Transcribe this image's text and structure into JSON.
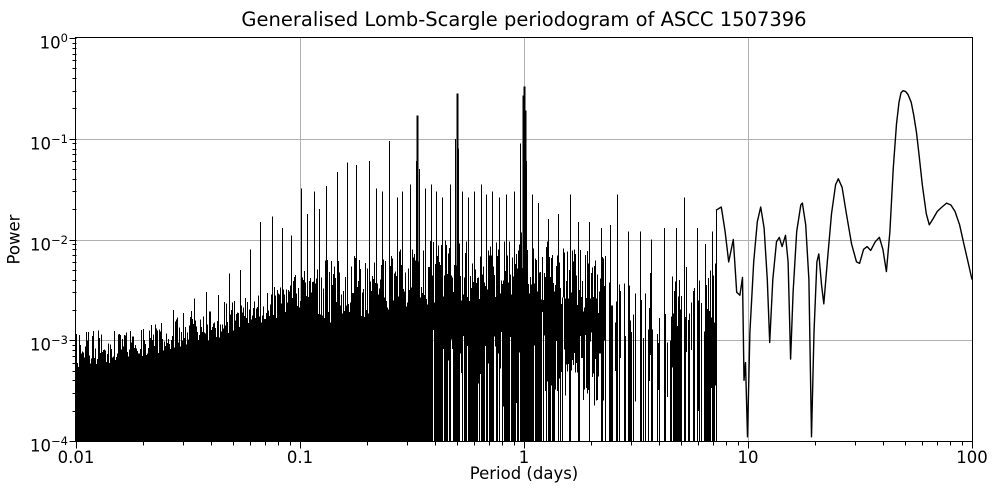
{
  "chart_data": {
    "type": "line",
    "title": "Generalised Lomb-Scargle periodogram of ASCC 1507396",
    "xlabel": "Period (days)",
    "ylabel": "Power",
    "xscale": "log",
    "yscale": "log",
    "xlim": [
      0.01,
      100
    ],
    "ylim": [
      0.0001,
      1
    ],
    "grid": true,
    "legend": "none",
    "line_color": "#000000",
    "grid_color": "#b0b0b0",
    "background_color": "#ffffff",
    "x_ticks": [
      {
        "value": 0.01,
        "label": "0.01"
      },
      {
        "value": 0.1,
        "label": "0.1"
      },
      {
        "value": 1,
        "label": "1"
      },
      {
        "value": 10,
        "label": "10"
      },
      {
        "value": 100,
        "label": "100"
      }
    ],
    "y_ticks": [
      {
        "exp": 0,
        "exp_label": "0"
      },
      {
        "exp": -1,
        "exp_label": "−1"
      },
      {
        "exp": -2,
        "exp_label": "−2"
      },
      {
        "exp": -3,
        "exp_label": "−3"
      },
      {
        "exp": -4,
        "exp_label": "−4"
      }
    ],
    "main_peaks": [
      {
        "period_days": 0.25,
        "power": 0.095
      },
      {
        "period_days": 0.333,
        "power": 0.17
      },
      {
        "period_days": 0.5,
        "power": 0.28
      },
      {
        "period_days": 1.0,
        "power": 0.33
      },
      {
        "period_days": 49,
        "power": 0.3
      }
    ],
    "dense_region": {
      "from": 0.01,
      "to": 7.2,
      "gaps_start": 0.33,
      "sparse_start": 2.3
    },
    "noise_envelope": [
      [
        0.01,
        0.00095
      ],
      [
        0.014,
        0.00105
      ],
      [
        0.02,
        0.0012
      ],
      [
        0.03,
        0.0015
      ],
      [
        0.045,
        0.0019
      ],
      [
        0.06,
        0.0024
      ],
      [
        0.08,
        0.003
      ],
      [
        0.1,
        0.0038
      ],
      [
        0.13,
        0.0045
      ],
      [
        0.17,
        0.005
      ],
      [
        0.22,
        0.0055
      ],
      [
        0.3,
        0.0065
      ],
      [
        0.4,
        0.007
      ],
      [
        0.5,
        0.0075
      ],
      [
        0.65,
        0.007
      ],
      [
        0.8,
        0.0075
      ],
      [
        1.0,
        0.0085
      ],
      [
        1.3,
        0.007
      ],
      [
        1.7,
        0.006
      ],
      [
        2.2,
        0.005
      ],
      [
        3.0,
        0.0045
      ],
      [
        4.0,
        0.004
      ],
      [
        5.0,
        0.0045
      ],
      [
        6.0,
        0.004
      ],
      [
        7.2,
        0.005
      ]
    ],
    "spike_peaks": [
      [
        0.027,
        0.002
      ],
      [
        0.0335,
        0.0026
      ],
      [
        0.038,
        0.003
      ],
      [
        0.043,
        0.0028
      ],
      [
        0.048,
        0.0046
      ],
      [
        0.054,
        0.005
      ],
      [
        0.06,
        0.008
      ],
      [
        0.066,
        0.015
      ],
      [
        0.075,
        0.017
      ],
      [
        0.083,
        0.013
      ],
      [
        0.091,
        0.011
      ],
      [
        0.101,
        0.032
      ],
      [
        0.108,
        0.018
      ],
      [
        0.115,
        0.03
      ],
      [
        0.122,
        0.02
      ],
      [
        0.131,
        0.034
      ],
      [
        0.147,
        0.047
      ],
      [
        0.162,
        0.058
      ],
      [
        0.177,
        0.055
      ],
      [
        0.203,
        0.06
      ],
      [
        0.218,
        0.032
      ],
      [
        0.233,
        0.03
      ],
      [
        0.25,
        0.095
      ],
      [
        0.27,
        0.026
      ],
      [
        0.286,
        0.03
      ],
      [
        0.31,
        0.035
      ],
      [
        0.33,
        0.06
      ],
      [
        0.3333,
        0.17
      ],
      [
        0.339,
        0.05
      ],
      [
        0.36,
        0.032
      ],
      [
        0.385,
        0.035
      ],
      [
        0.405,
        0.03
      ],
      [
        0.43,
        0.026
      ],
      [
        0.465,
        0.035
      ],
      [
        0.494,
        0.1
      ],
      [
        0.5,
        0.28
      ],
      [
        0.507,
        0.08
      ],
      [
        0.53,
        0.03
      ],
      [
        0.56,
        0.026
      ],
      [
        0.6,
        0.03
      ],
      [
        0.64,
        0.035
      ],
      [
        0.68,
        0.028
      ],
      [
        0.72,
        0.03
      ],
      [
        0.77,
        0.026
      ],
      [
        0.83,
        0.028
      ],
      [
        0.9,
        0.03
      ],
      [
        0.955,
        0.09
      ],
      [
        0.985,
        0.1
      ],
      [
        0.993,
        0.27
      ],
      [
        1.0,
        0.33
      ],
      [
        1.008,
        0.19
      ],
      [
        1.017,
        0.06
      ],
      [
        1.09,
        0.028
      ],
      [
        1.15,
        0.023
      ],
      [
        1.28,
        0.016
      ],
      [
        1.42,
        0.018
      ],
      [
        1.6,
        0.028
      ],
      [
        1.75,
        0.015
      ],
      [
        1.95,
        0.015
      ],
      [
        2.2,
        0.013
      ],
      [
        2.42,
        0.014
      ],
      [
        2.6,
        0.028
      ],
      [
        2.9,
        0.012
      ],
      [
        3.3,
        0.012
      ],
      [
        3.7,
        0.01
      ],
      [
        4.2,
        0.013
      ],
      [
        4.75,
        0.013
      ],
      [
        5.2,
        0.026
      ],
      [
        5.9,
        0.013
      ],
      [
        6.4,
        0.009
      ],
      [
        6.9,
        0.012
      ],
      [
        7.2,
        0.0195
      ]
    ],
    "smooth_curve": [
      [
        7.2,
        0.0195
      ],
      [
        7.6,
        0.021
      ],
      [
        7.9,
        0.012
      ],
      [
        8.2,
        0.006
      ],
      [
        8.6,
        0.01
      ],
      [
        8.9,
        0.003
      ],
      [
        9.2,
        0.0028
      ],
      [
        9.45,
        0.0042
      ],
      [
        9.6,
        0.0004
      ],
      [
        9.75,
        0.0006
      ],
      [
        9.95,
        0.00011
      ],
      [
        10.2,
        0.0012
      ],
      [
        10.6,
        0.006
      ],
      [
        11.0,
        0.015
      ],
      [
        11.4,
        0.021
      ],
      [
        11.8,
        0.013
      ],
      [
        12.2,
        0.004
      ],
      [
        12.5,
        0.00095
      ],
      [
        12.9,
        0.004
      ],
      [
        13.4,
        0.0095
      ],
      [
        13.8,
        0.0105
      ],
      [
        14.2,
        0.0085
      ],
      [
        14.7,
        0.011
      ],
      [
        15.1,
        0.006
      ],
      [
        15.5,
        0.00065
      ],
      [
        15.9,
        0.003
      ],
      [
        16.5,
        0.012
      ],
      [
        17.2,
        0.022
      ],
      [
        17.5,
        0.023
      ],
      [
        18.1,
        0.014
      ],
      [
        18.7,
        0.004
      ],
      [
        19.2,
        0.00011
      ],
      [
        19.7,
        0.0012
      ],
      [
        20.3,
        0.006
      ],
      [
        20.7,
        0.0072
      ],
      [
        21.3,
        0.0035
      ],
      [
        21.8,
        0.0023
      ],
      [
        22.6,
        0.006
      ],
      [
        23.6,
        0.018
      ],
      [
        24.6,
        0.035
      ],
      [
        25.3,
        0.04
      ],
      [
        26.3,
        0.033
      ],
      [
        27.5,
        0.018
      ],
      [
        29.0,
        0.009
      ],
      [
        30.5,
        0.006
      ],
      [
        31.5,
        0.0058
      ],
      [
        32.8,
        0.008
      ],
      [
        34.0,
        0.0085
      ],
      [
        35.3,
        0.0078
      ],
      [
        37.0,
        0.0095
      ],
      [
        38.6,
        0.0105
      ],
      [
        40.0,
        0.008
      ],
      [
        41.5,
        0.0048
      ],
      [
        43.0,
        0.012
      ],
      [
        44.5,
        0.05
      ],
      [
        46.0,
        0.14
      ],
      [
        47.2,
        0.23
      ],
      [
        48.2,
        0.285
      ],
      [
        49.2,
        0.3
      ],
      [
        50.5,
        0.295
      ],
      [
        51.8,
        0.275
      ],
      [
        53.5,
        0.23
      ],
      [
        55.0,
        0.17
      ],
      [
        56.5,
        0.115
      ],
      [
        58.0,
        0.07
      ],
      [
        60.0,
        0.035
      ],
      [
        62.5,
        0.018
      ],
      [
        64.5,
        0.014
      ],
      [
        67.0,
        0.016
      ],
      [
        70.0,
        0.019
      ],
      [
        73.5,
        0.021
      ],
      [
        77.0,
        0.023
      ],
      [
        80.5,
        0.022
      ],
      [
        84.0,
        0.019
      ],
      [
        88.0,
        0.014
      ],
      [
        92.0,
        0.009
      ],
      [
        96.0,
        0.006
      ],
      [
        100.0,
        0.004
      ]
    ]
  }
}
